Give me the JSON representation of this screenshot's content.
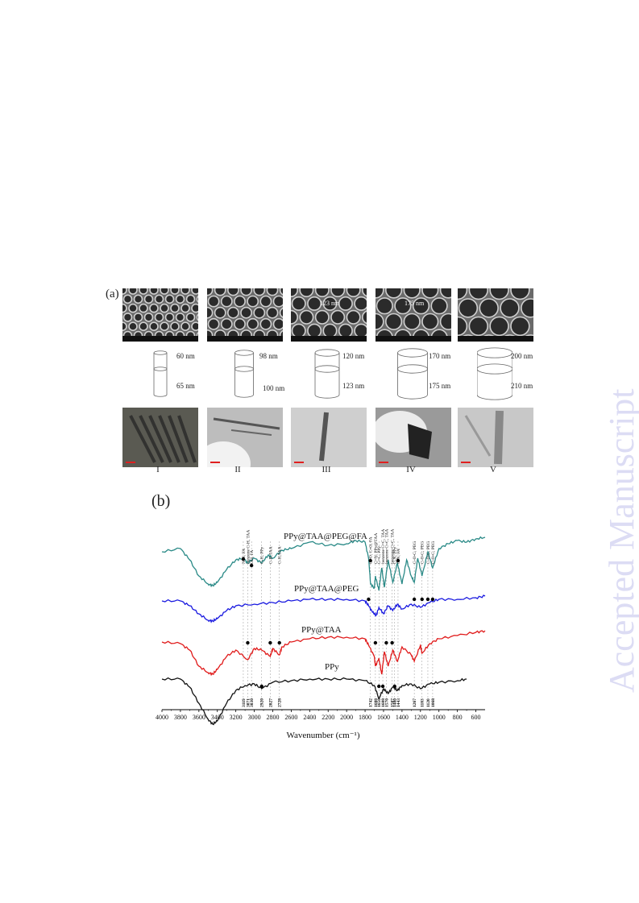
{
  "watermark": "Accepted Manuscript",
  "panel_a": {
    "label": "(a)",
    "samples": [
      {
        "roman": "I",
        "sem_annotation": "",
        "top_diameter": "60 nm",
        "bottom_diameter": "65 nm"
      },
      {
        "roman": "II",
        "sem_annotation": "",
        "top_diameter": "98 nm",
        "bottom_diameter": "100 nm"
      },
      {
        "roman": "III",
        "sem_annotation": "123 nm",
        "top_diameter": "120 nm",
        "bottom_diameter": "123 nm"
      },
      {
        "roman": "IV",
        "sem_annotation": "175 nm",
        "top_diameter": "170 nm",
        "bottom_diameter": "175 nm"
      },
      {
        "roman": "V",
        "sem_annotation": "",
        "top_diameter": "200 nm",
        "bottom_diameter": "210 nm"
      }
    ]
  },
  "panel_b": {
    "label": "(b)",
    "chart_data": {
      "type": "line",
      "title": "",
      "xlabel": "Wavenumber (cm⁻¹)",
      "ylabel": "",
      "xlim": [
        4000,
        500
      ],
      "x_reversed": true,
      "xticks": [
        4000,
        3800,
        3600,
        3400,
        3200,
        3000,
        2800,
        2600,
        2400,
        2200,
        2000,
        1800,
        1600,
        1400,
        1200,
        1000,
        800,
        600
      ],
      "grid": false,
      "series": [
        {
          "name": "PPy@TAA@PEG@FA",
          "color": "#2a8a87",
          "baseline": 685,
          "points": [
            [
              4000,
              0
            ],
            [
              3800,
              -4
            ],
            [
              3700,
              10
            ],
            [
              3600,
              30
            ],
            [
              3500,
              40
            ],
            [
              3450,
              42
            ],
            [
              3400,
              38
            ],
            [
              3300,
              22
            ],
            [
              3200,
              10
            ],
            [
              3119,
              8
            ],
            [
              3071,
              14
            ],
            [
              3000,
              8
            ],
            [
              2920,
              14
            ],
            [
              2850,
              4
            ],
            [
              2800,
              8
            ],
            [
              2700,
              -2
            ],
            [
              2600,
              -4
            ],
            [
              2400,
              -12
            ],
            [
              2200,
              -8
            ],
            [
              2000,
              -10
            ],
            [
              1900,
              -14
            ],
            [
              1800,
              -12
            ],
            [
              1762,
              8
            ],
            [
              1740,
              40
            ],
            [
              1700,
              45
            ],
            [
              1688,
              30
            ],
            [
              1650,
              48
            ],
            [
              1620,
              20
            ],
            [
              1590,
              44
            ],
            [
              1550,
              10
            ],
            [
              1500,
              38
            ],
            [
              1450,
              14
            ],
            [
              1400,
              40
            ],
            [
              1350,
              10
            ],
            [
              1300,
              30
            ],
            [
              1267,
              38
            ],
            [
              1230,
              8
            ],
            [
              1183,
              30
            ],
            [
              1120,
              0
            ],
            [
              1068,
              20
            ],
            [
              1000,
              -4
            ],
            [
              900,
              -10
            ],
            [
              800,
              -14
            ],
            [
              700,
              -12
            ],
            [
              600,
              -16
            ],
            [
              500,
              -18
            ]
          ]
        },
        {
          "name": "PPy@TAA@PEG",
          "color": "#1a1ae0",
          "baseline": 746,
          "points": [
            [
              4000,
              0
            ],
            [
              3800,
              0
            ],
            [
              3700,
              6
            ],
            [
              3600,
              16
            ],
            [
              3500,
              24
            ],
            [
              3450,
              25
            ],
            [
              3400,
              22
            ],
            [
              3300,
              12
            ],
            [
              3200,
              6
            ],
            [
              3000,
              4
            ],
            [
              2800,
              2
            ],
            [
              2600,
              0
            ],
            [
              2400,
              -2
            ],
            [
              2200,
              -2
            ],
            [
              2000,
              -2
            ],
            [
              1800,
              0
            ],
            [
              1762,
              6
            ],
            [
              1720,
              14
            ],
            [
              1680,
              18
            ],
            [
              1650,
              8
            ],
            [
              1600,
              16
            ],
            [
              1550,
              6
            ],
            [
              1500,
              12
            ],
            [
              1450,
              4
            ],
            [
              1400,
              10
            ],
            [
              1300,
              4
            ],
            [
              1200,
              8
            ],
            [
              1100,
              2
            ],
            [
              1000,
              -2
            ],
            [
              800,
              -2
            ],
            [
              600,
              -4
            ],
            [
              500,
              -6
            ]
          ]
        },
        {
          "name": "PPy@TAA",
          "color": "#e01a1a",
          "baseline": 797,
          "points": [
            [
              4000,
              0
            ],
            [
              3800,
              2
            ],
            [
              3700,
              10
            ],
            [
              3600,
              30
            ],
            [
              3500,
              38
            ],
            [
              3450,
              40
            ],
            [
              3400,
              34
            ],
            [
              3300,
              18
            ],
            [
              3200,
              10
            ],
            [
              3071,
              22
            ],
            [
              3000,
              8
            ],
            [
              2920,
              10
            ],
            [
              2827,
              18
            ],
            [
              2800,
              8
            ],
            [
              2728,
              16
            ],
            [
              2700,
              6
            ],
            [
              2600,
              0
            ],
            [
              2400,
              -4
            ],
            [
              2200,
              -6
            ],
            [
              2000,
              -6
            ],
            [
              1800,
              -4
            ],
            [
              1762,
              4
            ],
            [
              1700,
              18
            ],
            [
              1688,
              30
            ],
            [
              1650,
              20
            ],
            [
              1620,
              40
            ],
            [
              1590,
              12
            ],
            [
              1550,
              30
            ],
            [
              1500,
              10
            ],
            [
              1450,
              24
            ],
            [
              1400,
              6
            ],
            [
              1300,
              16
            ],
            [
              1267,
              24
            ],
            [
              1200,
              4
            ],
            [
              1183,
              14
            ],
            [
              1100,
              2
            ],
            [
              1000,
              -4
            ],
            [
              800,
              -8
            ],
            [
              600,
              -12
            ],
            [
              500,
              -14
            ]
          ]
        },
        {
          "name": "PPy",
          "color": "#111111",
          "baseline": 843,
          "points": [
            [
              4000,
              0
            ],
            [
              3800,
              0
            ],
            [
              3700,
              10
            ],
            [
              3600,
              30
            ],
            [
              3500,
              50
            ],
            [
              3450,
              56
            ],
            [
              3400,
              52
            ],
            [
              3300,
              30
            ],
            [
              3200,
              14
            ],
            [
              3100,
              8
            ],
            [
              3000,
              6
            ],
            [
              2920,
              12
            ],
            [
              2800,
              4
            ],
            [
              2600,
              2
            ],
            [
              2400,
              0
            ],
            [
              2200,
              0
            ],
            [
              2000,
              0
            ],
            [
              1800,
              2
            ],
            [
              1700,
              8
            ],
            [
              1650,
              24
            ],
            [
              1600,
              12
            ],
            [
              1550,
              18
            ],
            [
              1500,
              10
            ],
            [
              1450,
              14
            ],
            [
              1400,
              8
            ],
            [
              1300,
              6
            ],
            [
              1200,
              12
            ],
            [
              1100,
              6
            ],
            [
              1000,
              4
            ],
            [
              800,
              2
            ],
            [
              700,
              0
            ]
          ]
        }
      ],
      "band_labels": [
        {
          "x": 3119,
          "label": "N-H, FA"
        },
        {
          "x": 3071,
          "label": "benzene C-H, TAA"
        },
        {
          "x": 3030,
          "label": "OH, FA"
        },
        {
          "x": 2920,
          "label": "C-H, PPy"
        },
        {
          "x": 2827,
          "label": "C-H,TAA"
        },
        {
          "x": 2728,
          "label": "C-H,TAA"
        },
        {
          "x": 1742,
          "label": "C=O, C=O, FA"
        },
        {
          "x": 1688,
          "label": "C=N, PPy@TAA"
        },
        {
          "x": 1650,
          "label": "C=C, PPy"
        },
        {
          "x": 1608,
          "label": "benzene C=C, TAA"
        },
        {
          "x": 1570,
          "label": "benzene C=C, TAA"
        },
        {
          "x": 1507,
          "label": "benzene C=C, TAA"
        },
        {
          "x": 1480,
          "label": "C-N, PPy"
        },
        {
          "x": 1443,
          "label": "C-N, FA"
        },
        {
          "x": 1267,
          "label": "C-O-C, PEG"
        },
        {
          "x": 1183,
          "label": "C-O-C, PEG"
        },
        {
          "x": 1120,
          "label": "C-O-C, PEG"
        },
        {
          "x": 1068,
          "label": "C-O-C, PEG"
        }
      ],
      "peak_numbers": [
        "3119",
        "3071",
        "3030",
        "2920",
        "2827",
        "2728",
        "1742",
        "1688",
        "1650",
        "1608",
        "1570",
        "1507",
        "1480",
        "1443",
        "1267",
        "1183",
        "1120",
        "1068"
      ]
    }
  }
}
